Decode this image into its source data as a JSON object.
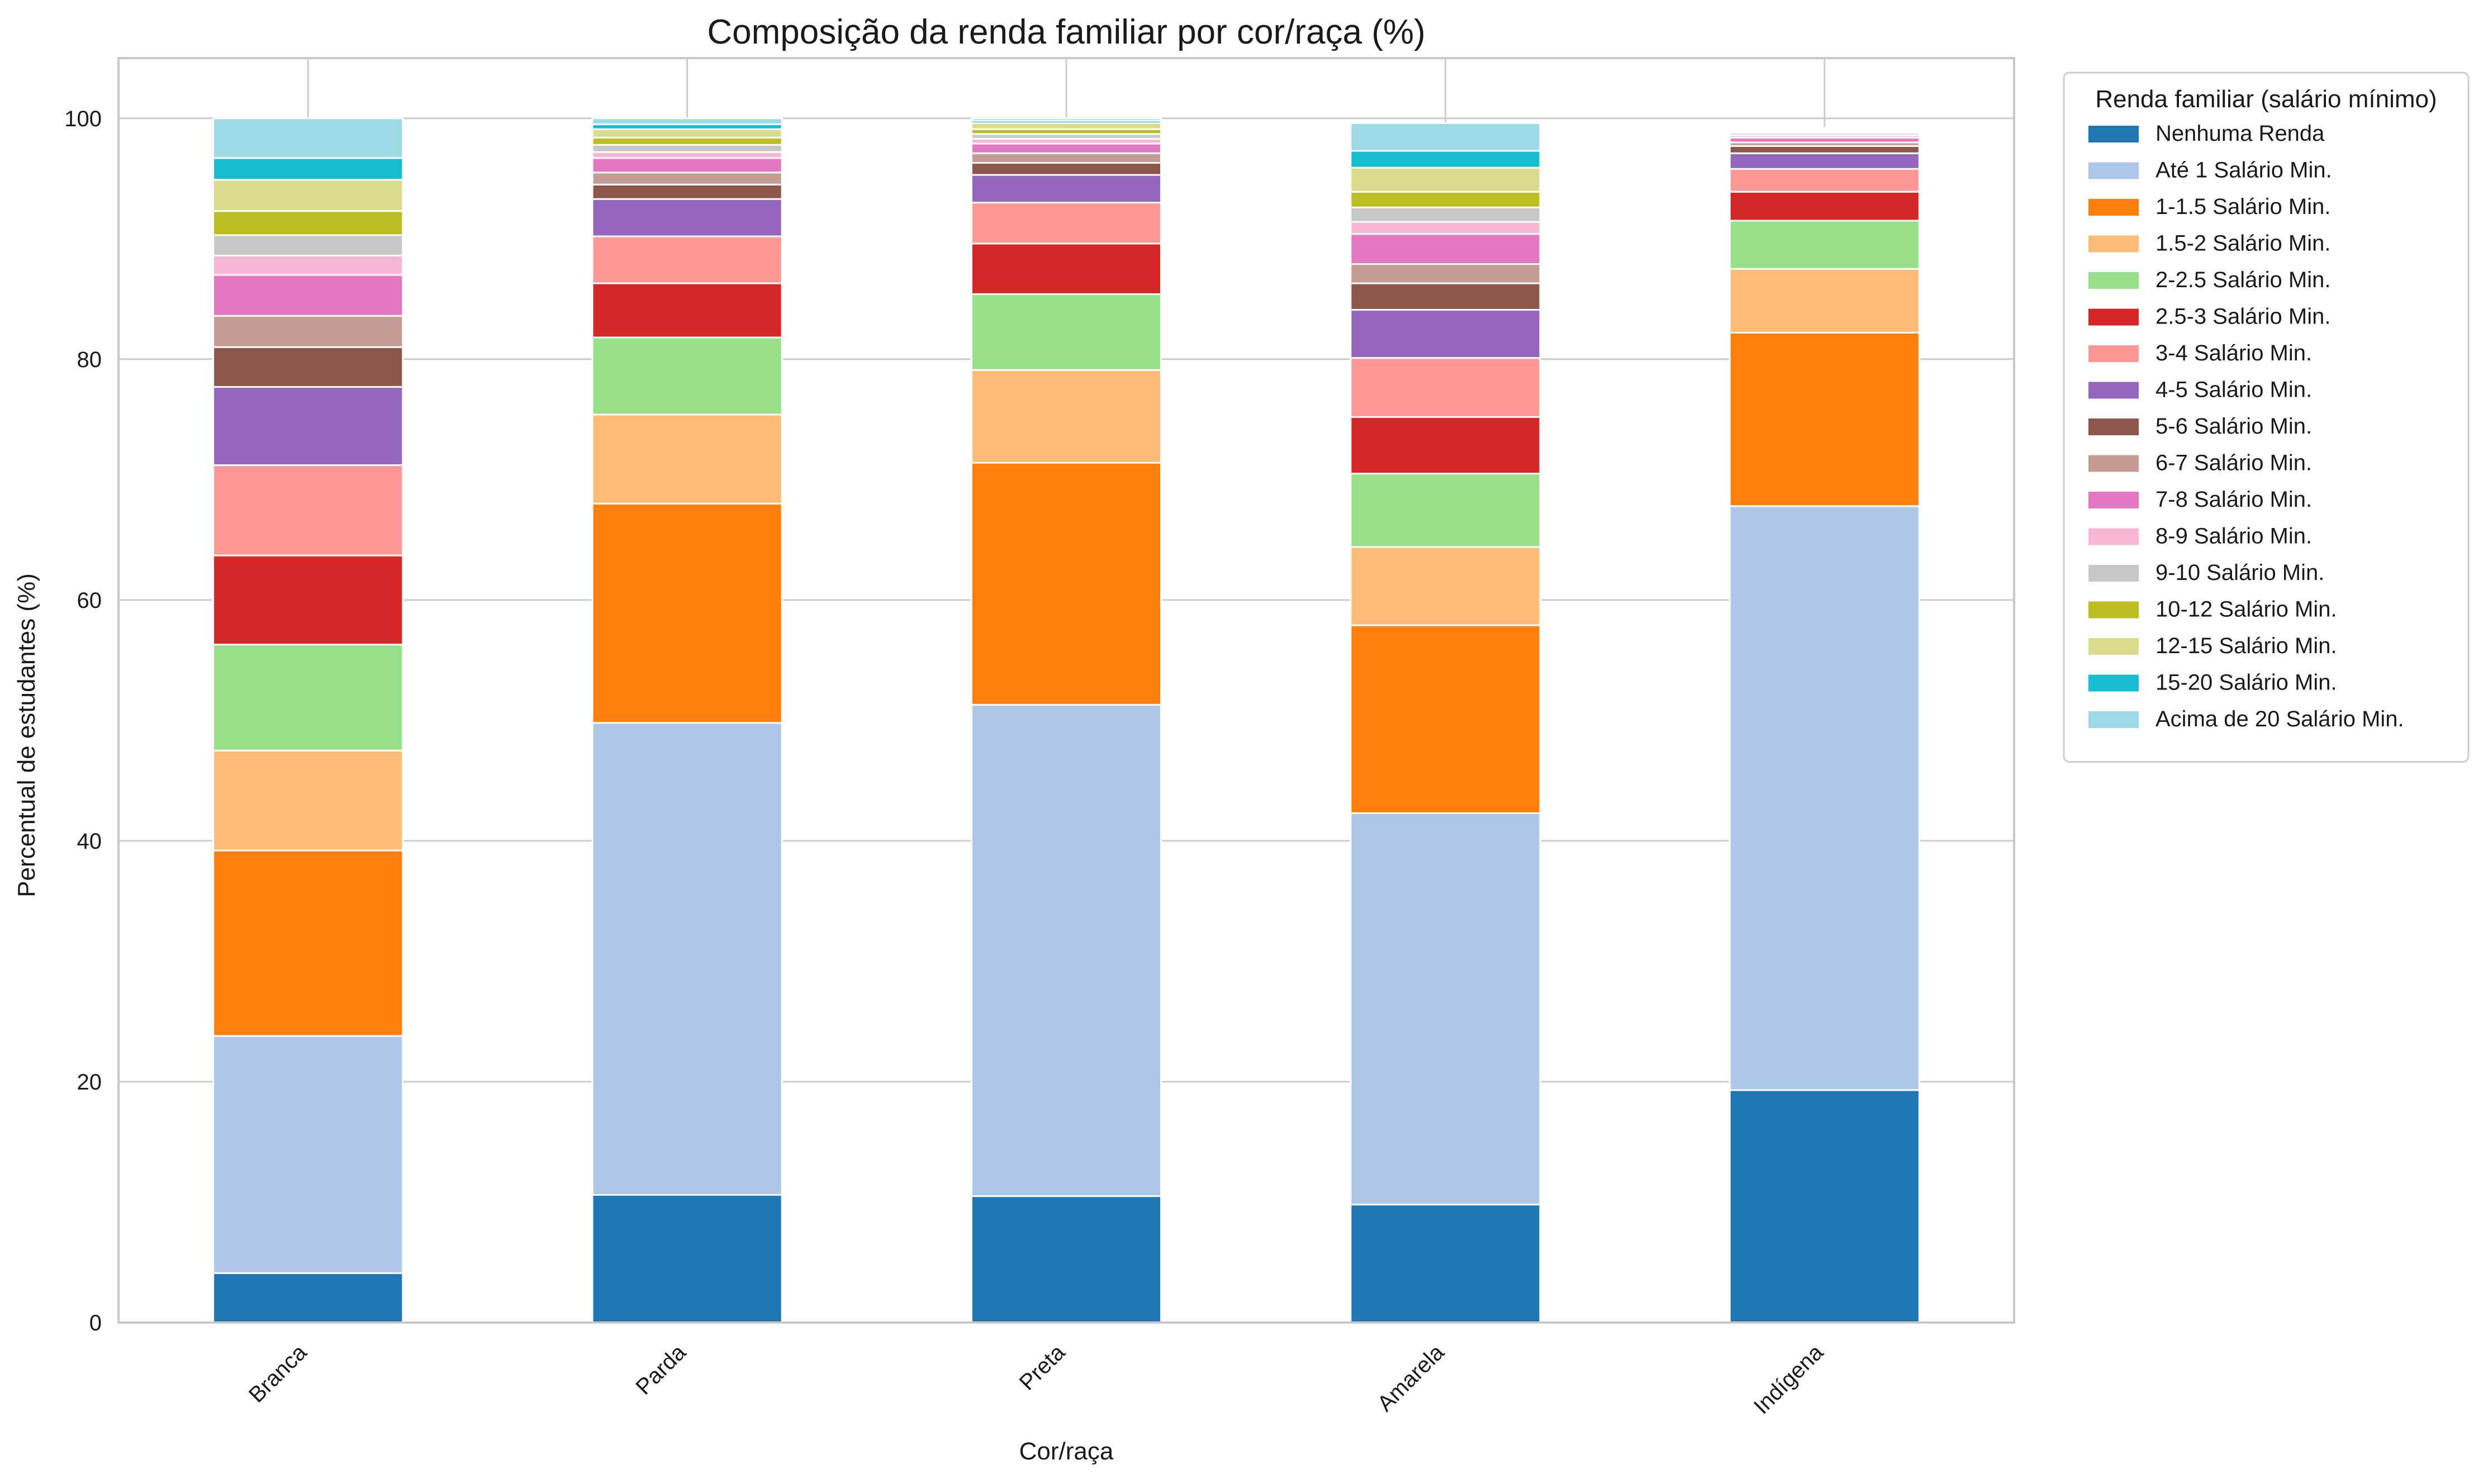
{
  "chart_data": {
    "type": "bar",
    "stacked": true,
    "title": "Composição da renda familiar por cor/raça (%)",
    "xlabel": "Cor/raça",
    "ylabel": "Percentual de estudantes (%)",
    "ylim": [
      0,
      105
    ],
    "yticks": [
      0,
      20,
      40,
      60,
      80,
      100
    ],
    "grid": true,
    "legend": {
      "title": "Renda familiar (salário mínimo)",
      "placement": "outside-top-right"
    },
    "categories": [
      "Branca",
      "Parda",
      "Preta",
      "Amarela",
      "Indígena"
    ],
    "series": [
      {
        "name": "Nenhuma Renda",
        "color": "#1f77b4",
        "values": [
          4.1,
          10.6,
          10.5,
          9.8,
          19.3
        ]
      },
      {
        "name": "Até 1 Salário Min.",
        "color": "#aec7e8",
        "values": [
          19.7,
          39.2,
          40.8,
          32.5,
          48.5
        ]
      },
      {
        "name": "1-1.5 Salário Min.",
        "color": "#ff7f0e",
        "values": [
          15.4,
          18.2,
          20.1,
          15.6,
          14.4
        ]
      },
      {
        "name": "1.5-2 Salário Min.",
        "color": "#ffbb78",
        "values": [
          8.3,
          7.4,
          7.7,
          6.5,
          5.3
        ]
      },
      {
        "name": "2-2.5 Salário Min.",
        "color": "#98df8a",
        "values": [
          8.8,
          6.4,
          6.3,
          6.1,
          4.0
        ]
      },
      {
        "name": "2.5-3 Salário Min.",
        "color": "#d62728",
        "values": [
          7.4,
          4.5,
          4.2,
          4.7,
          2.4
        ]
      },
      {
        "name": "3-4 Salário Min.",
        "color": "#ff9896",
        "values": [
          7.5,
          3.9,
          3.4,
          4.9,
          1.9
        ]
      },
      {
        "name": "4-5 Salário Min.",
        "color": "#9467bd",
        "values": [
          6.5,
          3.1,
          2.3,
          4.0,
          1.3
        ]
      },
      {
        "name": "5-6 Salário Min.",
        "color": "#8c564b",
        "values": [
          3.3,
          1.2,
          1.0,
          2.2,
          0.6
        ]
      },
      {
        "name": "6-7 Salário Min.",
        "color": "#c49c94",
        "values": [
          2.6,
          1.0,
          0.8,
          1.6,
          0.3
        ]
      },
      {
        "name": "7-8 Salário Min.",
        "color": "#e377c2",
        "values": [
          3.4,
          1.2,
          0.8,
          2.5,
          0.4
        ]
      },
      {
        "name": "8-9 Salário Min.",
        "color": "#f7b6d2",
        "values": [
          1.6,
          0.5,
          0.4,
          1.0,
          0.2
        ]
      },
      {
        "name": "9-10 Salário Min.",
        "color": "#c7c7c7",
        "values": [
          1.7,
          0.6,
          0.4,
          1.2,
          0.2
        ]
      },
      {
        "name": "10-12 Salário Min.",
        "color": "#bcbd22",
        "values": [
          2.0,
          0.6,
          0.4,
          1.3,
          0.1
        ]
      },
      {
        "name": "12-15 Salário Min.",
        "color": "#dbdb8d",
        "values": [
          2.6,
          0.7,
          0.5,
          2.0,
          0.1
        ]
      },
      {
        "name": "15-20 Salário Min.",
        "color": "#17becf",
        "values": [
          1.8,
          0.4,
          0.2,
          1.4,
          0.1
        ]
      },
      {
        "name": "Acima de 20 Salário Min.",
        "color": "#9edae5",
        "values": [
          3.3,
          0.5,
          0.2,
          2.3,
          0.1
        ]
      }
    ]
  }
}
